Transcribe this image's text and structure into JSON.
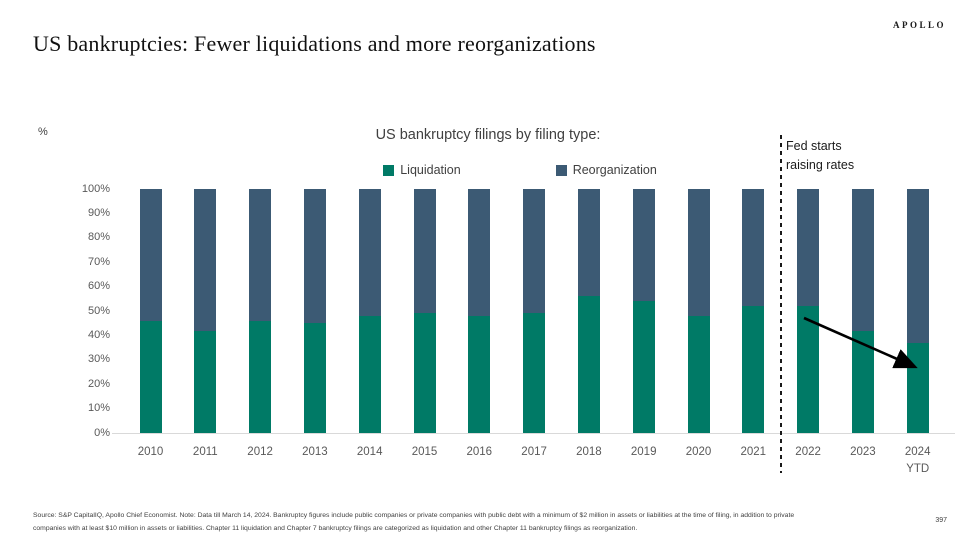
{
  "header": {
    "title": "US bankruptcies: Fewer liquidations and more reorganizations",
    "brand": "APOLLO"
  },
  "chart_data": {
    "type": "bar",
    "stacked": true,
    "title": "US bankruptcy filings by filing type:",
    "unit_label": "%",
    "categories": [
      "2010",
      "2011",
      "2012",
      "2013",
      "2014",
      "2015",
      "2016",
      "2017",
      "2018",
      "2019",
      "2020",
      "2021",
      "2022",
      "2023",
      "2024"
    ],
    "last_category_sublabel": "YTD",
    "series": [
      {
        "name": "Liquidation",
        "color": "#007A66",
        "values": [
          46,
          42,
          46,
          45,
          48,
          49,
          48,
          49,
          56,
          54,
          48,
          52,
          52,
          42,
          37
        ]
      },
      {
        "name": "Reorganization",
        "color": "#3C5A74",
        "values": [
          54,
          58,
          54,
          55,
          52,
          51,
          52,
          51,
          44,
          46,
          52,
          48,
          48,
          58,
          63
        ]
      }
    ],
    "ylim": [
      0,
      100
    ],
    "y_tick_labels": [
      "0%",
      "10%",
      "20%",
      "30%",
      "40%",
      "50%",
      "60%",
      "70%",
      "80%",
      "90%",
      "100%"
    ],
    "grid": false,
    "legend_position": "top-center",
    "annotations": [
      {
        "type": "dashed-vertical-line",
        "after_category": "2021"
      },
      {
        "type": "text",
        "line1": "Fed starts",
        "line2": "raising rates"
      },
      {
        "type": "arrow",
        "from": {
          "category": "2022",
          "value": 48
        },
        "to": {
          "category": "2024",
          "value": 27
        }
      }
    ]
  },
  "annotation": {
    "line1": "Fed starts",
    "line2": "raising rates"
  },
  "footer": {
    "source_line1": "Source: S&P CapitalIQ, Apollo Chief Economist. Note: Data till March 14, 2024. Bankruptcy figures include public companies or private companies with public debt with a minimum of $2 million in assets or liabilities at the time of filing, in addition to private",
    "source_line2": "companies with at least $10 million in assets or liabilities. Chapter 11 liquidation and Chapter 7 bankruptcy filings are categorized as liquidation and other Chapter 11 bankruptcy filings as reorganization.",
    "page_number": "397"
  }
}
